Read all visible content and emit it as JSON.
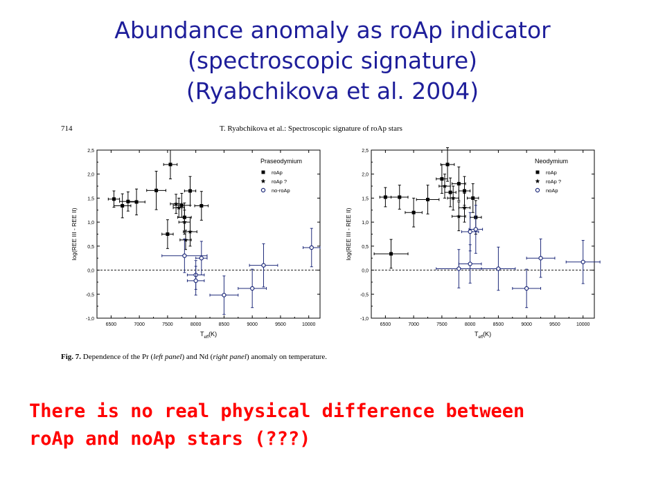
{
  "slide": {
    "title_lines": [
      "Abundance anomaly as roAp indicator",
      "(spectroscopic signature)",
      "(Ryabchikova et al. 2004)"
    ],
    "conclusion_lines": [
      "There is no real physical difference between",
      "roAp and noAp stars (???)"
    ],
    "colors": {
      "title": "#1e1e9a",
      "conclusion": "#ff0000",
      "no_roap": "#1e2a7a"
    }
  },
  "figure": {
    "page_number": "714",
    "running_head": "T. Ryabchikova et al.: Spectroscopic signature of roAp stars",
    "caption": {
      "label": "Fig. 7.",
      "part1": " Dependence of the Pr (",
      "left_word": "left panel",
      "part2": ") and Nd (",
      "right_word": "right panel",
      "part3": ") anomaly on temperature."
    }
  },
  "chart_data": [
    {
      "type": "scatter",
      "title": "Praseodymium",
      "xlabel_main": "T",
      "xlabel_sub": "eff",
      "xlabel_unit": "(K)",
      "ylabel": "log(REE III - REE II)",
      "xlim": [
        6250,
        10200
      ],
      "ylim": [
        -1.0,
        2.5
      ],
      "xticks": [
        6500,
        7000,
        7500,
        8000,
        8500,
        9000,
        9500,
        10000
      ],
      "yticks": [
        -1.0,
        -0.5,
        0.0,
        0.5,
        1.0,
        1.5,
        2.0,
        2.5
      ],
      "ytick_labels": [
        "-1,0",
        "-0,5",
        "0,0",
        "0,5",
        "1,0",
        "1,5",
        "2,0",
        "2,5"
      ],
      "reference_line_y": 0.0,
      "legend": [
        {
          "label": "roAp",
          "marker": "square"
        },
        {
          "label": "roAp ?",
          "marker": "star"
        },
        {
          "label": "no-roAp",
          "marker": "open-circle"
        }
      ],
      "series": [
        {
          "name": "roAp",
          "points": [
            {
              "x": 6550,
              "y": 1.48,
              "xe": 100,
              "ye": 0.17
            },
            {
              "x": 6700,
              "y": 1.34,
              "xe": 150,
              "ye": 0.25
            },
            {
              "x": 6800,
              "y": 1.43,
              "xe": 150,
              "ye": 0.2
            },
            {
              "x": 6950,
              "y": 1.42,
              "xe": 150,
              "ye": 0.27
            },
            {
              "x": 7300,
              "y": 1.66,
              "xe": 170,
              "ye": 0.4
            },
            {
              "x": 7550,
              "y": 2.2,
              "xe": 120,
              "ye": 0.3
            },
            {
              "x": 7750,
              "y": 1.35,
              "xe": 150,
              "ye": 0.25
            },
            {
              "x": 7800,
              "y": 1.1,
              "xe": 120,
              "ye": 0.3
            },
            {
              "x": 7900,
              "y": 1.65,
              "xe": 100,
              "ye": 0.3
            },
            {
              "x": 8100,
              "y": 1.34,
              "xe": 120,
              "ye": 0.3
            },
            {
              "x": 7500,
              "y": 0.75,
              "xe": 100,
              "ye": 0.3
            }
          ]
        },
        {
          "name": "roAp ?",
          "points": [
            {
              "x": 7650,
              "y": 1.38,
              "xe": 100,
              "ye": 0.2
            },
            {
              "x": 7700,
              "y": 1.3,
              "xe": 100,
              "ye": 0.2
            },
            {
              "x": 7800,
              "y": 1.0,
              "xe": 100,
              "ye": 0.25
            },
            {
              "x": 7900,
              "y": 0.8,
              "xe": 120,
              "ye": 0.3
            },
            {
              "x": 7820,
              "y": 0.63,
              "xe": 100,
              "ye": 0.2
            }
          ]
        },
        {
          "name": "no-roAp",
          "points": [
            {
              "x": 7800,
              "y": 0.3,
              "xe": 400,
              "ye": 0.35
            },
            {
              "x": 8000,
              "y": -0.1,
              "xe": 150,
              "ye": 0.3
            },
            {
              "x": 8000,
              "y": -0.22,
              "xe": 150,
              "ye": 0.3
            },
            {
              "x": 8100,
              "y": 0.25,
              "xe": 100,
              "ye": 0.35
            },
            {
              "x": 8500,
              "y": -0.52,
              "xe": 250,
              "ye": 0.4
            },
            {
              "x": 9000,
              "y": -0.38,
              "xe": 250,
              "ye": 0.4
            },
            {
              "x": 9200,
              "y": 0.1,
              "xe": 250,
              "ye": 0.45
            },
            {
              "x": 10050,
              "y": 0.47,
              "xe": 150,
              "ye": 0.4
            }
          ]
        }
      ]
    },
    {
      "type": "scatter",
      "title": "Neodymium",
      "xlabel_main": "T",
      "xlabel_sub": "eff",
      "xlabel_unit": "(K)",
      "ylabel": "log(REE III - REE II)",
      "xlim": [
        6250,
        10200
      ],
      "ylim": [
        -1.0,
        2.5
      ],
      "xticks": [
        6500,
        7000,
        7500,
        8000,
        8500,
        9000,
        9500,
        10000
      ],
      "yticks": [
        -1.0,
        -0.5,
        0.0,
        0.5,
        1.0,
        1.5,
        2.0,
        2.5
      ],
      "ytick_labels": [
        "-1,0",
        "-0,5",
        "0,0",
        "0,5",
        "1,0",
        "1,5",
        "2,0",
        "2,5"
      ],
      "reference_line_y": 0.0,
      "legend": [
        {
          "label": "roAp",
          "marker": "square"
        },
        {
          "label": "roAp ?",
          "marker": "star"
        },
        {
          "label": "noAp",
          "marker": "open-circle"
        }
      ],
      "series": [
        {
          "name": "roAp",
          "points": [
            {
              "x": 6500,
              "y": 1.52,
              "xe": 100,
              "ye": 0.2
            },
            {
              "x": 6600,
              "y": 0.34,
              "xe": 300,
              "ye": 0.3
            },
            {
              "x": 6750,
              "y": 1.52,
              "xe": 150,
              "ye": 0.25
            },
            {
              "x": 7000,
              "y": 1.2,
              "xe": 150,
              "ye": 0.3
            },
            {
              "x": 7250,
              "y": 1.47,
              "xe": 200,
              "ye": 0.3
            },
            {
              "x": 7500,
              "y": 1.9,
              "xe": 100,
              "ye": 0.3
            },
            {
              "x": 7600,
              "y": 2.2,
              "xe": 120,
              "ye": 0.35
            },
            {
              "x": 7650,
              "y": 1.62,
              "xe": 100,
              "ye": 0.3
            },
            {
              "x": 7800,
              "y": 1.8,
              "xe": 120,
              "ye": 0.35
            },
            {
              "x": 7900,
              "y": 1.65,
              "xe": 100,
              "ye": 0.3
            },
            {
              "x": 8050,
              "y": 1.5,
              "xe": 100,
              "ye": 0.3
            },
            {
              "x": 8100,
              "y": 1.1,
              "xe": 100,
              "ye": 0.35
            }
          ]
        },
        {
          "name": "roAp ?",
          "points": [
            {
              "x": 7550,
              "y": 1.75,
              "xe": 100,
              "ye": 0.25
            },
            {
              "x": 7700,
              "y": 1.5,
              "xe": 100,
              "ye": 0.25
            },
            {
              "x": 7800,
              "y": 1.12,
              "xe": 120,
              "ye": 0.3
            },
            {
              "x": 7900,
              "y": 1.3,
              "xe": 100,
              "ye": 0.3
            }
          ]
        },
        {
          "name": "noAp",
          "points": [
            {
              "x": 7800,
              "y": 0.03,
              "xe": 400,
              "ye": 0.4
            },
            {
              "x": 8000,
              "y": 0.8,
              "xe": 150,
              "ye": 0.4
            },
            {
              "x": 8000,
              "y": 0.13,
              "xe": 200,
              "ye": 0.4
            },
            {
              "x": 8100,
              "y": 0.85,
              "xe": 120,
              "ye": 0.5
            },
            {
              "x": 8500,
              "y": 0.03,
              "xe": 300,
              "ye": 0.45
            },
            {
              "x": 9000,
              "y": -0.38,
              "xe": 250,
              "ye": 0.4
            },
            {
              "x": 9250,
              "y": 0.25,
              "xe": 250,
              "ye": 0.4
            },
            {
              "x": 10000,
              "y": 0.17,
              "xe": 300,
              "ye": 0.45
            }
          ]
        }
      ]
    }
  ]
}
